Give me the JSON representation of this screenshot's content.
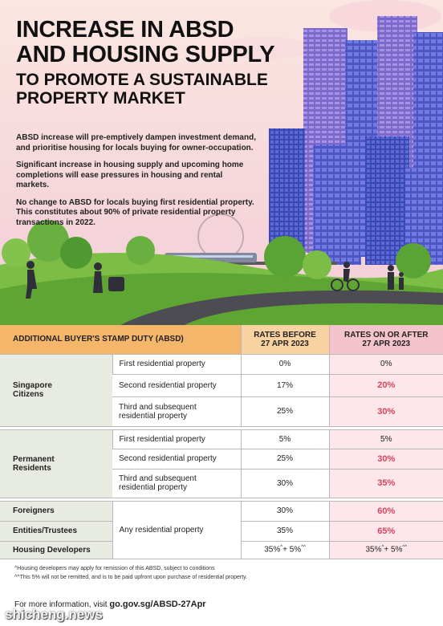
{
  "header": {
    "title_lines": [
      "INCREASE IN ABSD",
      "AND HOUSING SUPPLY"
    ],
    "subtitle_lines": [
      "TO PROMOTE A SUSTAINABLE",
      "PROPERTY MARKET"
    ]
  },
  "paragraphs": [
    "ABSD increase will pre-emptively dampen investment demand, and prioritise housing for locals buying for owner-occupation.",
    "Significant increase in housing supply and upcoming home completions will ease pressures in housing and rental markets.",
    "No change to ABSD for locals buying first residential property. This constitutes about 90% of private residential property transactions in 2022."
  ],
  "table": {
    "headers": [
      "ADDITIONAL BUYER'S STAMP DUTY (ABSD)",
      "RATES BEFORE 27 APR 2023",
      "RATES ON OR AFTER 27 APR 2023"
    ],
    "groups": [
      {
        "name": "Singapore Citizens",
        "rows": [
          {
            "property": "First residential property",
            "before": "0%",
            "after": "0%",
            "raised": false
          },
          {
            "property": "Second residential property",
            "before": "17%",
            "after": "20%",
            "raised": true
          },
          {
            "property": "Third and subsequent residential property",
            "before": "25%",
            "after": "30%",
            "raised": true
          }
        ]
      },
      {
        "name": "Permanent Residents",
        "rows": [
          {
            "property": "First residential property",
            "before": "5%",
            "after": "5%",
            "raised": false
          },
          {
            "property": "Second residential property",
            "before": "25%",
            "after": "30%",
            "raised": true
          },
          {
            "property": "Third and subsequent residential property",
            "before": "30%",
            "after": "35%",
            "raised": true
          }
        ]
      }
    ],
    "shared_property": "Any residential property",
    "other_buyers": [
      {
        "name": "Foreigners",
        "before": "30%",
        "after": "60%",
        "raised": true
      },
      {
        "name": "Entities/Trustees",
        "before": "35%",
        "after": "65%",
        "raised": true
      },
      {
        "name": "Housing Developers",
        "before": [
          "35%",
          "^",
          "+ 5%",
          "^^"
        ],
        "after": [
          "35%",
          "^",
          "+ 5%",
          "^^"
        ],
        "raised": false
      }
    ]
  },
  "footnotes": [
    "^Housing developers may apply for remission of this ABSD, subject to conditions",
    "^^This 5% will not be remitted, and is to be paid upfront upon purchase of residential property."
  ],
  "footer": {
    "text": "For more information, visit",
    "link": "go.gov.sg/ABSD-27Apr"
  },
  "watermark": "shicheng.news"
}
